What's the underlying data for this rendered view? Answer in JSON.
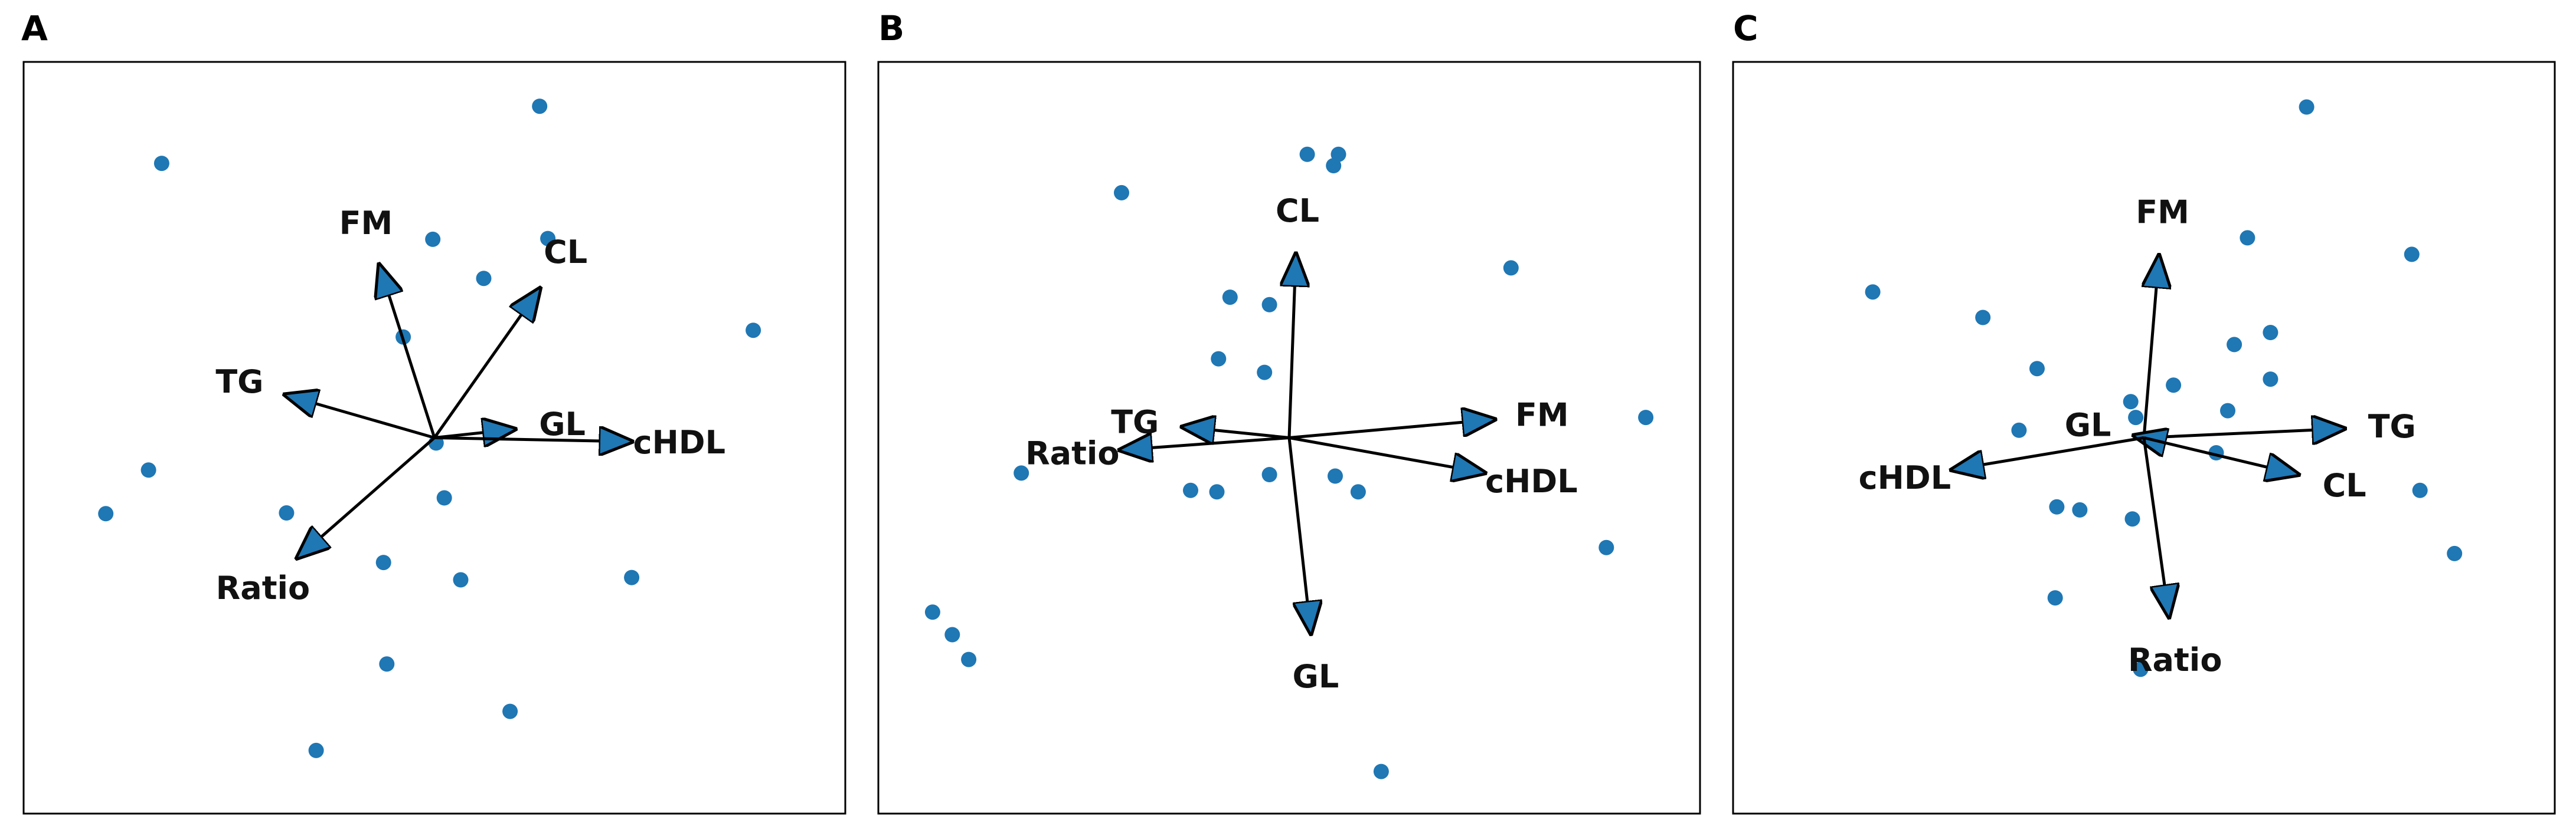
{
  "colors": {
    "point": "#1f77b4",
    "arrow_fill": "#1f77b4",
    "arrow_stroke": "#000000",
    "frame": "#000000"
  },
  "chart_data": [
    {
      "type": "scatter",
      "panel_label": "A",
      "xlim": [
        0,
        1000
      ],
      "ylim": [
        0,
        1000
      ],
      "grid": false,
      "axes_ticks": false,
      "points": [
        [
          628,
          941
        ],
        [
          168,
          865
        ],
        [
          498,
          764
        ],
        [
          638,
          765
        ],
        [
          560,
          712
        ],
        [
          462,
          634
        ],
        [
          888,
          643
        ],
        [
          152,
          457
        ],
        [
          100,
          399
        ],
        [
          320,
          400
        ],
        [
          438,
          334
        ],
        [
          512,
          420
        ],
        [
          740,
          314
        ],
        [
          532,
          311
        ],
        [
          442,
          199
        ],
        [
          592,
          136
        ],
        [
          356,
          84
        ],
        [
          502,
          493
        ]
      ],
      "vectors": [
        {
          "label": "FM",
          "dx": -66,
          "dy": 226
        },
        {
          "label": "CL",
          "dx": 126,
          "dy": 195
        },
        {
          "label": "TG",
          "dx": -178,
          "dy": 56
        },
        {
          "label": "GL",
          "dx": 94,
          "dy": 11
        },
        {
          "label": "cHDL",
          "dx": 236,
          "dy": -5
        },
        {
          "label": "Ratio",
          "dx": -164,
          "dy": -157
        }
      ]
    },
    {
      "type": "scatter",
      "panel_label": "B",
      "xlim": [
        0,
        1000
      ],
      "ylim": [
        0,
        1000
      ],
      "grid": false,
      "axes_ticks": false,
      "points": [
        [
          522,
          877
        ],
        [
          560,
          877
        ],
        [
          554,
          862
        ],
        [
          296,
          826
        ],
        [
          770,
          726
        ],
        [
          428,
          687
        ],
        [
          476,
          677
        ],
        [
          414,
          605
        ],
        [
          470,
          587
        ],
        [
          934,
          527
        ],
        [
          174,
          453
        ],
        [
          476,
          451
        ],
        [
          556,
          449
        ],
        [
          380,
          430
        ],
        [
          412,
          428
        ],
        [
          584,
          428
        ],
        [
          886,
          354
        ],
        [
          66,
          268
        ],
        [
          90,
          238
        ],
        [
          110,
          205
        ],
        [
          612,
          56
        ]
      ],
      "vectors": [
        {
          "label": "CL",
          "dx": 8,
          "dy": 240
        },
        {
          "label": "TG",
          "dx": -126,
          "dy": 14
        },
        {
          "label": "FM",
          "dx": 246,
          "dy": 24
        },
        {
          "label": "Ratio",
          "dx": -202,
          "dy": -16
        },
        {
          "label": "cHDL",
          "dx": 234,
          "dy": -46
        },
        {
          "label": "GL",
          "dx": 26,
          "dy": -256
        }
      ]
    },
    {
      "type": "scatter",
      "panel_label": "C",
      "xlim": [
        0,
        1000
      ],
      "ylim": [
        0,
        1000
      ],
      "grid": false,
      "axes_ticks": false,
      "points": [
        [
          698,
          940
        ],
        [
          626,
          766
        ],
        [
          826,
          744
        ],
        [
          170,
          694
        ],
        [
          304,
          660
        ],
        [
          370,
          592
        ],
        [
          610,
          624
        ],
        [
          654,
          640
        ],
        [
          536,
          570
        ],
        [
          654,
          578
        ],
        [
          602,
          536
        ],
        [
          484,
          548
        ],
        [
          348,
          510
        ],
        [
          588,
          480
        ],
        [
          836,
          430
        ],
        [
          394,
          408
        ],
        [
          422,
          404
        ],
        [
          486,
          392
        ],
        [
          392,
          287
        ],
        [
          878,
          346
        ],
        [
          496,
          192
        ],
        [
          490,
          527
        ]
      ],
      "vectors": [
        {
          "label": "FM",
          "dx": 18,
          "dy": 238
        },
        {
          "label": "TG",
          "dx": 240,
          "dy": 12
        },
        {
          "label": "GL",
          "dx": -8,
          "dy": 2
        },
        {
          "label": "cHDL",
          "dx": -230,
          "dy": -42
        },
        {
          "label": "CL",
          "dx": 184,
          "dy": -48
        },
        {
          "label": "Ratio",
          "dx": 30,
          "dy": -234
        }
      ]
    }
  ]
}
